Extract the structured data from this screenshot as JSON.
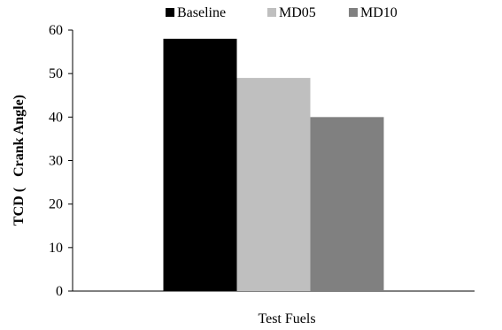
{
  "chart_data": {
    "type": "bar",
    "categories": [
      ""
    ],
    "series": [
      {
        "name": "Baseline",
        "values": [
          58
        ],
        "color": "#000000"
      },
      {
        "name": "MD05",
        "values": [
          49
        ],
        "color": "#bfbfbf"
      },
      {
        "name": "MD10",
        "values": [
          40
        ],
        "color": "#808080"
      }
    ],
    "xlabel": "Test Fuels",
    "ylabel": "TCD (   Crank Angle)",
    "ylim": [
      0,
      60
    ],
    "yticks": [
      "0",
      "10",
      "20",
      "30",
      "40",
      "50",
      "60"
    ],
    "grid": false,
    "legend_position": "top"
  }
}
